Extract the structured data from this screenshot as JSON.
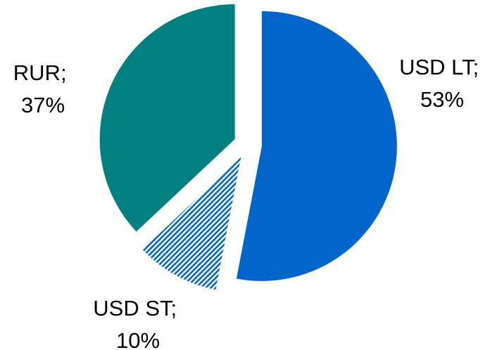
{
  "chart_data": {
    "type": "pie",
    "title": "",
    "slices": [
      {
        "name": "USD LT",
        "value": 53,
        "value_label": "53%",
        "color": "#0066cc",
        "pattern": "solid"
      },
      {
        "name": "USD ST",
        "value": 10,
        "value_label": "10%",
        "color": "#0066cc",
        "pattern": "diagonal-hatch"
      },
      {
        "name": "RUR",
        "value": 37,
        "value_label": "37%",
        "color": "#008080",
        "pattern": "solid"
      }
    ],
    "label_format": "{name};\n{value_label}",
    "legend": "none",
    "start_angle": "12 o'clock",
    "direction": "clockwise",
    "exploded": true
  }
}
